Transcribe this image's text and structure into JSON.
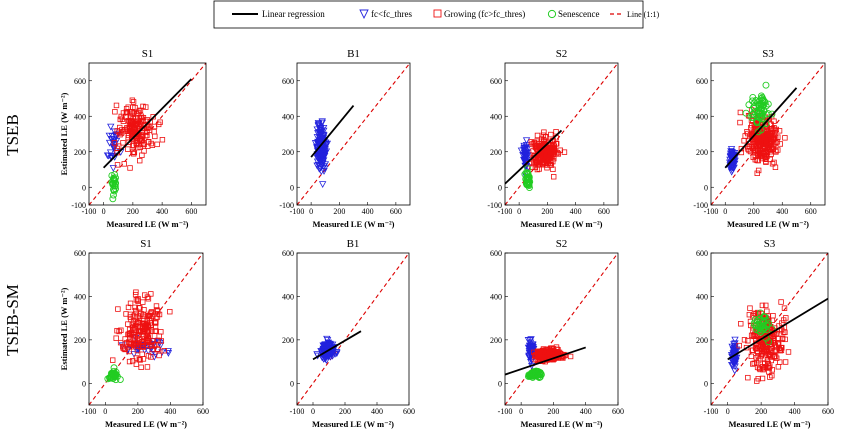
{
  "figure": {
    "row_labels": [
      "TSEB",
      "TSEB-SM"
    ],
    "legend": {
      "regression": "Linear regression",
      "low_fc": "fc<fc_thres",
      "growing": "Growing (fc>fc_thres)",
      "senescence": "Senescence",
      "one_to_one": "Line (1:1)"
    },
    "colors": {
      "regression": "#000000",
      "low_fc": "#2222dd",
      "growing": "#ee1111",
      "senescence": "#22cc22",
      "one_to_one": "#dd0000"
    }
  },
  "chart_data": [
    {
      "type": "scatter",
      "row": "TSEB",
      "title": "S1",
      "xlabel": "Measured LE (W m⁻²)",
      "ylabel": "Estimated LE (W m⁻²)",
      "xlim": [
        -100,
        700
      ],
      "ylim": [
        -100,
        700
      ],
      "xticks": [
        -100,
        0,
        200,
        400,
        600
      ],
      "yticks": [
        -100,
        0,
        200,
        400,
        600
      ],
      "one_to_one": true,
      "regression": {
        "x": [
          0,
          600
        ],
        "y": [
          110,
          610
        ]
      },
      "series": [
        {
          "name": "fc<fc_thres",
          "marker": "triangle-down",
          "center": [
            70,
            240
          ],
          "spread": [
            30,
            120
          ],
          "n": 30
        },
        {
          "name": "Growing (fc>fc_thres)",
          "marker": "square",
          "center": [
            220,
            330
          ],
          "spread": [
            120,
            130
          ],
          "n": 170
        },
        {
          "name": "Senescence",
          "marker": "circle",
          "center": [
            70,
            20
          ],
          "spread": [
            15,
            50
          ],
          "n": 25
        }
      ]
    },
    {
      "type": "scatter",
      "row": "TSEB",
      "title": "B1",
      "xlabel": "Measured LE (W m⁻²)",
      "ylabel": "",
      "xlim": [
        -100,
        700
      ],
      "ylim": [
        -100,
        700
      ],
      "xticks": [
        -100,
        0,
        200,
        400,
        600
      ],
      "yticks": [
        -100,
        0,
        200,
        400,
        600
      ],
      "one_to_one": true,
      "regression": {
        "x": [
          0,
          300
        ],
        "y": [
          170,
          460
        ]
      },
      "series": [
        {
          "name": "fc<fc_thres",
          "marker": "triangle-down",
          "center": [
            70,
            220
          ],
          "spread": [
            30,
            110
          ],
          "n": 170
        }
      ]
    },
    {
      "type": "scatter",
      "row": "TSEB",
      "title": "S2",
      "xlabel": "Measured LE (W m⁻²)",
      "ylabel": "",
      "xlim": [
        -100,
        700
      ],
      "ylim": [
        -100,
        700
      ],
      "xticks": [
        -100,
        0,
        200,
        400,
        600
      ],
      "yticks": [
        -100,
        0,
        200,
        400,
        600
      ],
      "one_to_one": true,
      "regression": {
        "x": [
          -100,
          300
        ],
        "y": [
          20,
          320
        ]
      },
      "series": [
        {
          "name": "fc<fc_thres",
          "marker": "triangle-down",
          "center": [
            45,
            180
          ],
          "spread": [
            15,
            70
          ],
          "n": 55
        },
        {
          "name": "Growing (fc>fc_thres)",
          "marker": "square",
          "center": [
            180,
            200
          ],
          "spread": [
            80,
            80
          ],
          "n": 210
        },
        {
          "name": "Senescence",
          "marker": "circle",
          "center": [
            60,
            40
          ],
          "spread": [
            20,
            40
          ],
          "n": 40
        }
      ]
    },
    {
      "type": "scatter",
      "row": "TSEB",
      "title": "S3",
      "xlabel": "Measured LE (W m⁻²)",
      "ylabel": "",
      "xlim": [
        -100,
        700
      ],
      "ylim": [
        -100,
        700
      ],
      "xticks": [
        -100,
        0,
        200,
        400,
        600
      ],
      "yticks": [
        -100,
        0,
        200,
        400,
        600
      ],
      "one_to_one": true,
      "regression": {
        "x": [
          0,
          500
        ],
        "y": [
          110,
          560
        ]
      },
      "series": [
        {
          "name": "fc<fc_thres",
          "marker": "triangle-down",
          "center": [
            50,
            150
          ],
          "spread": [
            15,
            60
          ],
          "n": 60
        },
        {
          "name": "Growing (fc>fc_thres)",
          "marker": "square",
          "center": [
            260,
            270
          ],
          "spread": [
            100,
            120
          ],
          "n": 280
        },
        {
          "name": "Senescence",
          "marker": "circle",
          "center": [
            250,
            420
          ],
          "spread": [
            70,
            90
          ],
          "n": 60
        }
      ]
    },
    {
      "type": "scatter",
      "row": "TSEB-SM",
      "title": "S1",
      "xlabel": "Measured LE (W m⁻²)",
      "ylabel": "Estimated LE (W m⁻²)",
      "xlim": [
        -100,
        600
      ],
      "ylim": [
        -100,
        600
      ],
      "xticks": [
        -100,
        0,
        200,
        400,
        600
      ],
      "yticks": [
        0,
        200,
        400,
        600
      ],
      "one_to_one": true,
      "series": [
        {
          "name": "fc<fc_thres",
          "marker": "triangle-down",
          "center": [
            250,
            170
          ],
          "spread": [
            120,
            30
          ],
          "n": 35
        },
        {
          "name": "Growing (fc>fc_thres)",
          "marker": "square",
          "center": [
            220,
            250
          ],
          "spread": [
            120,
            130
          ],
          "n": 190
        },
        {
          "name": "Senescence",
          "marker": "circle",
          "center": [
            50,
            40
          ],
          "spread": [
            30,
            20
          ],
          "n": 35
        }
      ]
    },
    {
      "type": "scatter",
      "row": "TSEB-SM",
      "title": "B1",
      "xlabel": "Measured LE (W m⁻²)",
      "ylabel": "",
      "xlim": [
        -100,
        600
      ],
      "ylim": [
        -100,
        600
      ],
      "xticks": [
        -100,
        0,
        200,
        400,
        600
      ],
      "yticks": [
        0,
        200,
        400,
        600
      ],
      "one_to_one": true,
      "regression": {
        "x": [
          0,
          300
        ],
        "y": [
          110,
          240
        ]
      },
      "series": [
        {
          "name": "fc<fc_thres",
          "marker": "triangle-down",
          "center": [
            90,
            150
          ],
          "spread": [
            40,
            30
          ],
          "n": 150
        }
      ]
    },
    {
      "type": "scatter",
      "row": "TSEB-SM",
      "title": "S2",
      "xlabel": "Measured LE (W m⁻²)",
      "ylabel": "",
      "xlim": [
        -100,
        600
      ],
      "ylim": [
        -100,
        600
      ],
      "xticks": [
        -100,
        0,
        200,
        400,
        600
      ],
      "yticks": [
        0,
        200,
        400,
        600
      ],
      "one_to_one": true,
      "regression": {
        "x": [
          -100,
          400
        ],
        "y": [
          40,
          165
        ]
      },
      "series": [
        {
          "name": "fc<fc_thres",
          "marker": "triangle-down",
          "center": [
            60,
            150
          ],
          "spread": [
            15,
            40
          ],
          "n": 60
        },
        {
          "name": "Growing (fc>fc_thres)",
          "marker": "square",
          "center": [
            170,
            130
          ],
          "spread": [
            70,
            20
          ],
          "n": 260
        },
        {
          "name": "Senescence",
          "marker": "circle",
          "center": [
            80,
            40
          ],
          "spread": [
            40,
            12
          ],
          "n": 70
        }
      ]
    },
    {
      "type": "scatter",
      "row": "TSEB-SM",
      "title": "S3",
      "xlabel": "Measured LE (W m⁻²)",
      "ylabel": "",
      "xlim": [
        -100,
        600
      ],
      "ylim": [
        -100,
        600
      ],
      "xticks": [
        -100,
        0,
        200,
        400,
        600
      ],
      "yticks": [
        0,
        200,
        400,
        600
      ],
      "one_to_one": true,
      "regression": {
        "x": [
          0,
          600
        ],
        "y": [
          110,
          390
        ]
      },
      "series": [
        {
          "name": "fc<fc_thres",
          "marker": "triangle-down",
          "center": [
            40,
            130
          ],
          "spread": [
            15,
            45
          ],
          "n": 60
        },
        {
          "name": "Growing (fc>fc_thres)",
          "marker": "square",
          "center": [
            230,
            200
          ],
          "spread": [
            100,
            130
          ],
          "n": 240
        },
        {
          "name": "Senescence",
          "marker": "circle",
          "center": [
            200,
            270
          ],
          "spread": [
            50,
            60
          ],
          "n": 35
        }
      ]
    }
  ]
}
